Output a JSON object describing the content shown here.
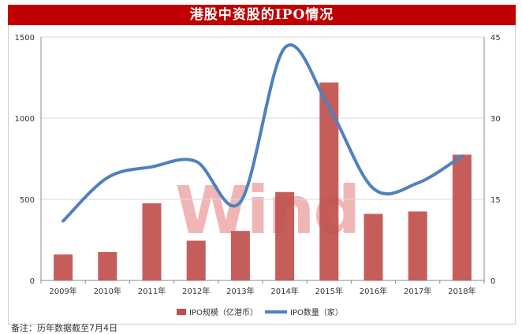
{
  "title": "港股中资股的IPO情况",
  "watermark": "Wind",
  "note": "备注：历年数据截至7月4日",
  "chart_data": {
    "type": "bar",
    "categories": [
      "2009年",
      "2010年",
      "2011年",
      "2012年",
      "2013年",
      "2014年",
      "2015年",
      "2016年",
      "2017年",
      "2018年"
    ],
    "series": [
      {
        "name": "IPO规模（亿港币）",
        "type": "bar",
        "axis": "left",
        "color": "#c0504d",
        "values": [
          160,
          175,
          475,
          245,
          305,
          545,
          1220,
          410,
          425,
          775
        ]
      },
      {
        "name": "IPO数量（家）",
        "type": "line",
        "axis": "right",
        "color": "#4f81bd",
        "values": [
          11,
          19,
          21,
          22,
          14.5,
          43,
          32,
          17,
          18,
          23
        ]
      }
    ],
    "y_left": {
      "min": 0,
      "max": 1500,
      "ticks": [
        0,
        500,
        1000,
        1500
      ]
    },
    "y_right": {
      "min": 0,
      "max": 45,
      "ticks": [
        0,
        15,
        30,
        45
      ]
    },
    "grid": true,
    "legend": "bottom"
  }
}
